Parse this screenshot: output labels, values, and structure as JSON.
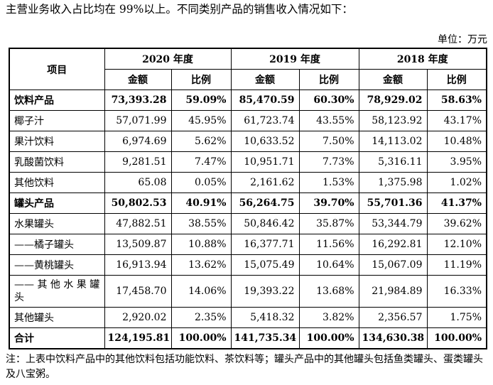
{
  "intro": "主营业务收入占比均在 99%以上。不同类别产品的销售收入情况如下：",
  "unit": "单位：万元",
  "table": {
    "item_header": "项目",
    "years": [
      "2020 年度",
      "2019 年度",
      "2018 年度"
    ],
    "sub_headers": {
      "amount": "金额",
      "ratio": "比例"
    },
    "rows": [
      {
        "name": "饮料产品",
        "bold": true,
        "values": [
          "73,393.28",
          "59.09%",
          "85,470.59",
          "60.30%",
          "78,929.02",
          "58.63%"
        ]
      },
      {
        "name": "椰子汁",
        "values": [
          "57,071.99",
          "45.95%",
          "61,723.74",
          "43.55%",
          "58,123.92",
          "43.17%"
        ]
      },
      {
        "name": "果汁饮料",
        "values": [
          "6,974.69",
          "5.62%",
          "10,633.52",
          "7.50%",
          "14,113.02",
          "10.48%"
        ]
      },
      {
        "name": "乳酸菌饮料",
        "values": [
          "9,281.51",
          "7.47%",
          "10,951.71",
          "7.73%",
          "5,316.11",
          "3.95%"
        ]
      },
      {
        "name": "其他饮料",
        "values": [
          "65.08",
          "0.05%",
          "2,161.62",
          "1.53%",
          "1,375.98",
          "1.02%"
        ]
      },
      {
        "name": "罐头产品",
        "bold": true,
        "values": [
          "50,802.53",
          "40.91%",
          "56,264.75",
          "39.70%",
          "55,701.36",
          "41.37%"
        ]
      },
      {
        "name": "水果罐头",
        "values": [
          "47,882.51",
          "38.55%",
          "50,846.42",
          "35.87%",
          "53,344.79",
          "39.62%"
        ]
      },
      {
        "name": "——橘子罐头",
        "values": [
          "13,509.87",
          "10.88%",
          "16,377.71",
          "11.56%",
          "16,292.81",
          "12.10%"
        ]
      },
      {
        "name": "——黄桃罐头",
        "values": [
          "16,913.94",
          "13.62%",
          "15,075.49",
          "10.64%",
          "15,067.09",
          "11.19%"
        ]
      },
      {
        "name": "—— 其 他 水 果 罐头",
        "tall": true,
        "values": [
          "17,458.70",
          "14.06%",
          "19,393.22",
          "13.68%",
          "21,984.89",
          "16.33%"
        ]
      },
      {
        "name": "其他罐头",
        "values": [
          "2,920.02",
          "2.35%",
          "5,418.32",
          "3.82%",
          "2,356.57",
          "1.75%"
        ]
      },
      {
        "name": "合计",
        "bold": true,
        "total": true,
        "values": [
          "124,195.81",
          "100.00%",
          "141,735.34",
          "100.00%",
          "134,630.38",
          "100.00%"
        ]
      }
    ]
  },
  "note": "注：上表中饮料产品中的其他饮料包括功能饮料、茶饮料等；罐头产品中的其他罐头包括鱼类罐头、蛋类罐头及八宝粥。"
}
